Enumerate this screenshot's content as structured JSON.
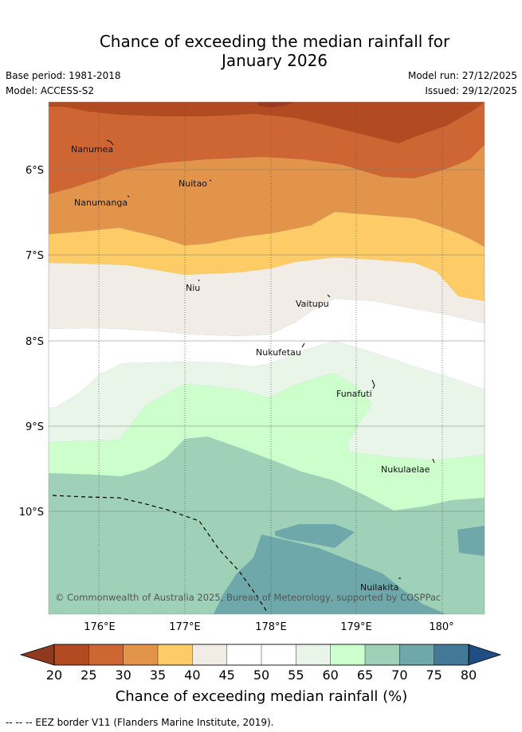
{
  "header": {
    "title_line1": "Chance of exceeding the median rainfall for",
    "title_line2": "January 2026",
    "base_period": "Base period: 1981-2018",
    "model": "Model: ACCESS-S2",
    "model_run": "Model run: 27/12/2025",
    "issued": "Issued: 29/12/2025"
  },
  "map": {
    "lat_labels": [
      "6°S",
      "7°S",
      "8°S",
      "9°S",
      "10°S"
    ],
    "lon_labels": [
      "176°E",
      "177°E",
      "178°E",
      "179°E",
      "180°"
    ],
    "places": [
      "Nanumea",
      "Nuitao",
      "Nanumanga",
      "Niu",
      "Vaitupu",
      "Nukufetau",
      "Funafuti",
      "Nukulaelae",
      "Nuilakita"
    ],
    "copyright": "© Commonwealth of Australia 2025, Bureau of Meteorology, supported by COSPPac"
  },
  "colorbar": {
    "ticks": [
      "20",
      "25",
      "30",
      "35",
      "40",
      "45",
      "50",
      "55",
      "60",
      "65",
      "70",
      "75",
      "80"
    ],
    "colors": [
      "#b34b22",
      "#cd6633",
      "#e2944b",
      "#fecc66",
      "#f1ede6",
      "#ffffff",
      "#ffffff",
      "#eaf5e9",
      "#ccffcc",
      "#9fd1b8",
      "#6fa8aa",
      "#427996"
    ],
    "low_arrow_color": "#8f3a1e",
    "high_arrow_color": "#1f4e85",
    "label": "Chance of exceeding median rainfall (%)"
  },
  "legend": {
    "eez": "-- -- -- EEZ border V11 (Flanders Marine Institute, 2019)."
  }
}
